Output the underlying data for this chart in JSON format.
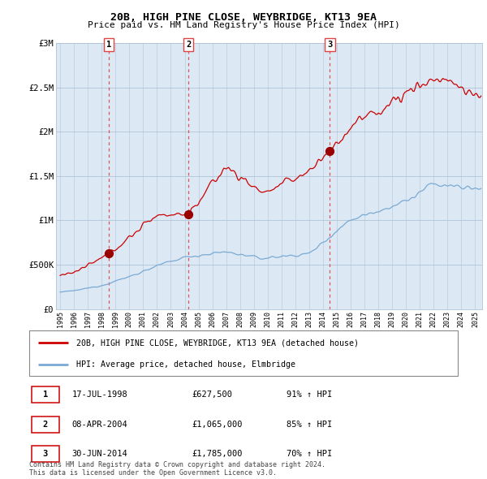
{
  "title": "20B, HIGH PINE CLOSE, WEYBRIDGE, KT13 9EA",
  "subtitle": "Price paid vs. HM Land Registry's House Price Index (HPI)",
  "ylabel_ticks": [
    "£0",
    "£500K",
    "£1M",
    "£1.5M",
    "£2M",
    "£2.5M",
    "£3M"
  ],
  "ytick_vals": [
    0,
    500000,
    1000000,
    1500000,
    2000000,
    2500000,
    3000000
  ],
  "ylim": [
    0,
    3000000
  ],
  "red_color": "#cc0000",
  "blue_color": "#7aaad4",
  "bg_color": "#dce9f5",
  "grid_color": "#b0c4d8",
  "sale_marker_color": "#990000",
  "dashed_line_color": "#dd4444",
  "legend_label_red": "20B, HIGH PINE CLOSE, WEYBRIDGE, KT13 9EA (detached house)",
  "legend_label_blue": "HPI: Average price, detached house, Elmbridge",
  "sale_points": [
    {
      "label": "1",
      "date": "17-JUL-1998",
      "price": 627500,
      "hpi_pct": "91% ↑ HPI",
      "x": 1998.54
    },
    {
      "label": "2",
      "date": "08-APR-2004",
      "price": 1065000,
      "hpi_pct": "85% ↑ HPI",
      "x": 2004.27
    },
    {
      "label": "3",
      "date": "30-JUN-2014",
      "price": 1785000,
      "hpi_pct": "70% ↑ HPI",
      "x": 2014.5
    }
  ],
  "footer_text": "Contains HM Land Registry data © Crown copyright and database right 2024.\nThis data is licensed under the Open Government Licence v3.0.",
  "xmin": 1994.7,
  "xmax": 2025.5
}
